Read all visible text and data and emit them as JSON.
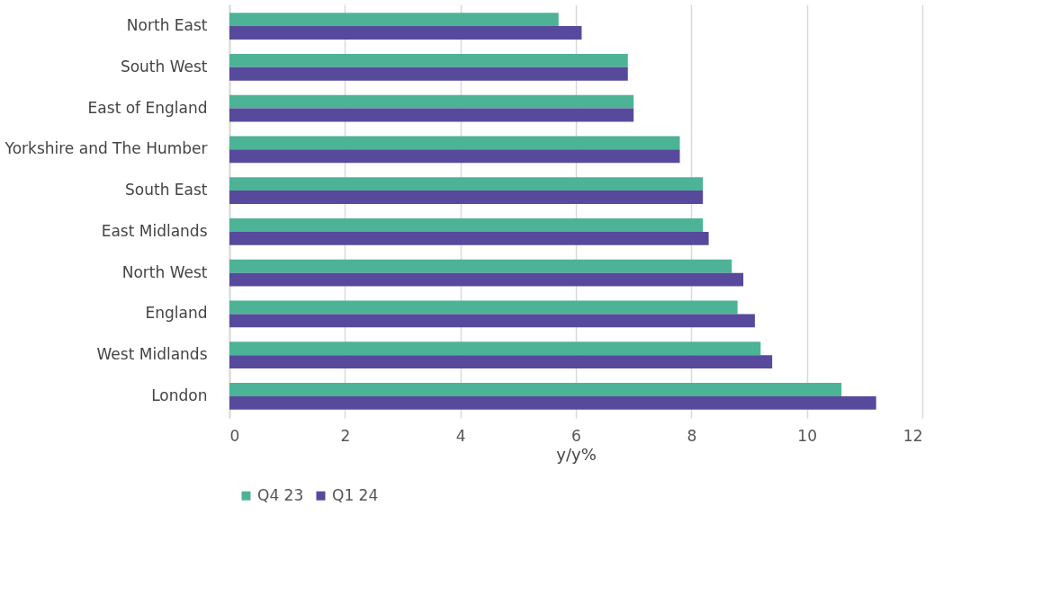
{
  "chart_data": {
    "type": "bar",
    "orientation": "horizontal",
    "xlabel": "y/y%",
    "categories": [
      "North East",
      "South West",
      "East of England",
      "Yorkshire and The Humber",
      "South East",
      "East Midlands",
      "North West",
      "England",
      "West Midlands",
      "London"
    ],
    "series": [
      {
        "name": "Q4 23",
        "color": "#4db396",
        "values": [
          5.7,
          6.9,
          7.0,
          7.8,
          8.2,
          8.2,
          8.7,
          8.8,
          9.2,
          10.6
        ]
      },
      {
        "name": "Q1 24",
        "color": "#574a9c",
        "values": [
          6.1,
          6.9,
          7.0,
          7.8,
          8.2,
          8.3,
          8.9,
          9.1,
          9.4,
          11.2
        ]
      }
    ],
    "xlim": [
      0,
      12
    ],
    "xticks": [
      0,
      2,
      4,
      6,
      8,
      10,
      12
    ],
    "grid": "x",
    "legend": "bottom"
  }
}
